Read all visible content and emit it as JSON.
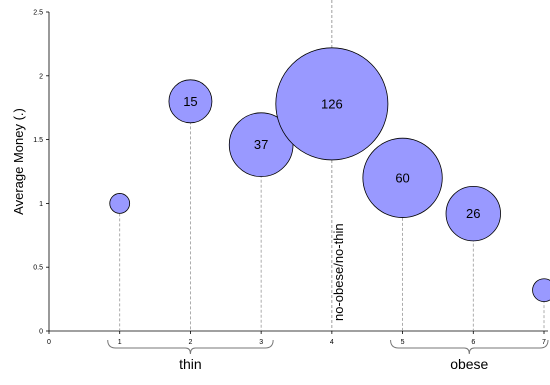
{
  "chart_data": {
    "type": "scatter",
    "title": "",
    "xlabel": "",
    "ylabel": "Average Money (.)",
    "xlim": [
      0,
      7
    ],
    "ylim": [
      0,
      2.5
    ],
    "x_ticks": [
      "0",
      "1",
      "2",
      "3",
      "4",
      "5",
      "6",
      "7"
    ],
    "y_ticks": [
      "0",
      "0.5",
      "1",
      "1.5",
      "2",
      "2.5"
    ],
    "grid": false,
    "bubble_color": "#9999ff",
    "points": [
      {
        "x": 1,
        "y": 1.0,
        "size": 2,
        "label": ""
      },
      {
        "x": 2,
        "y": 1.8,
        "size": 15,
        "label": "15"
      },
      {
        "x": 3,
        "y": 1.46,
        "size": 37,
        "label": "37"
      },
      {
        "x": 4,
        "y": 1.78,
        "size": 126,
        "label": "126"
      },
      {
        "x": 5,
        "y": 1.2,
        "size": 60,
        "label": "60"
      },
      {
        "x": 6,
        "y": 0.92,
        "size": 26,
        "label": "26"
      },
      {
        "x": 7,
        "y": 0.32,
        "size": 3,
        "label": ""
      }
    ],
    "reference_line": {
      "x": 4,
      "label": "no-obese/no-thin"
    },
    "groups": [
      {
        "label": "thin",
        "from": 1,
        "to": 3
      },
      {
        "label": "obese",
        "from": 5,
        "to": 7
      }
    ]
  }
}
